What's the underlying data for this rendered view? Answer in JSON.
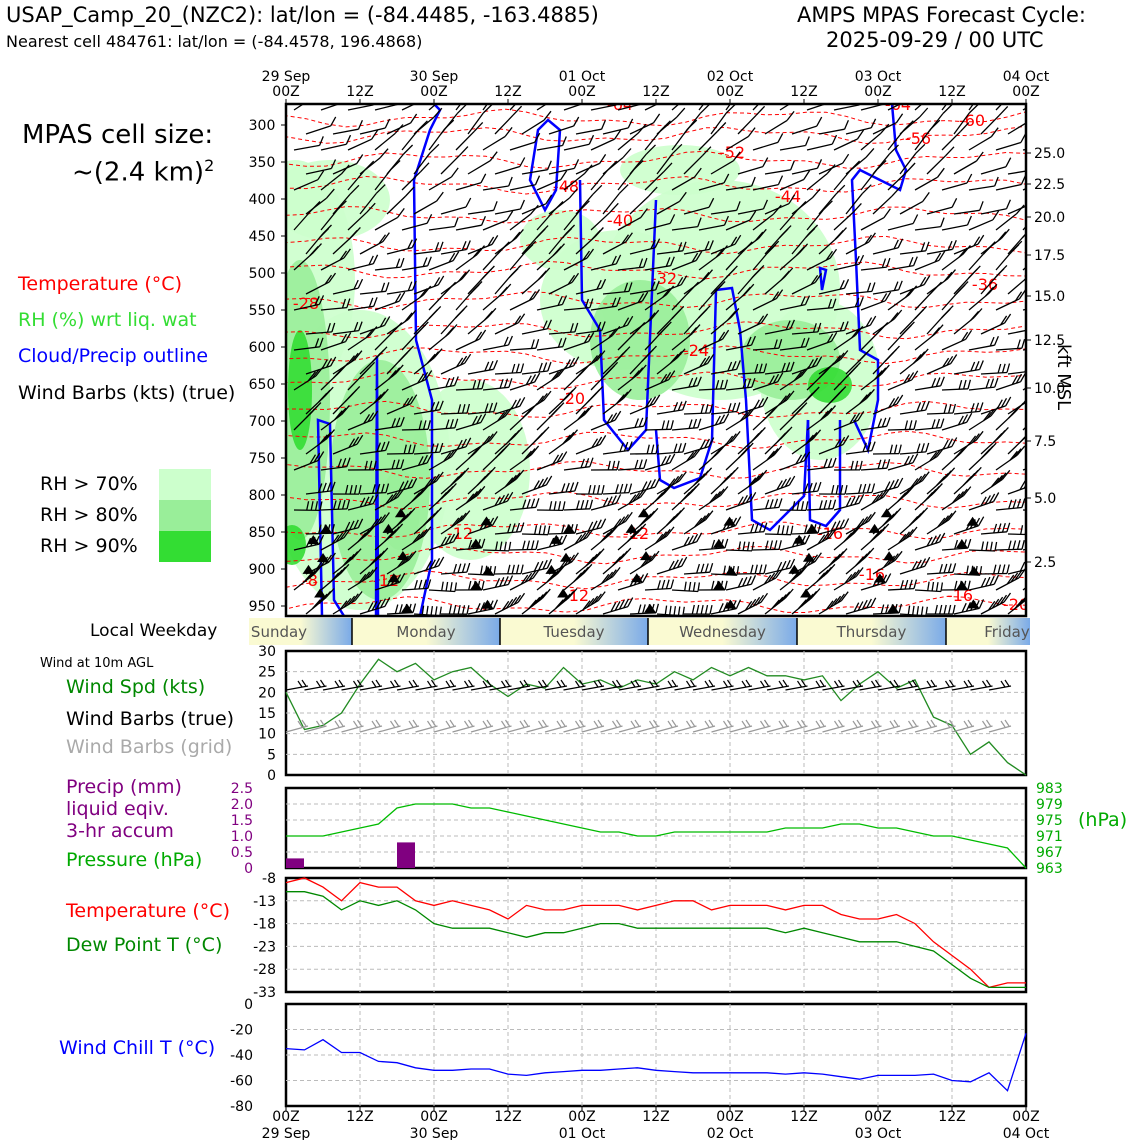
{
  "header": {
    "station_line": "USAP_Camp_20_(NZC2): lat/lon = (-84.4485, -163.4885)",
    "nearest_line": "Nearest cell 484761: lat/lon = (-84.4578, 196.4868)",
    "cycle_title": "AMPS MPAS Forecast Cycle:",
    "cycle_time": "2025-09-29 / 00 UTC"
  },
  "legend": {
    "cell_size_label": "MPAS cell size:",
    "cell_size_value": "~(2.4 km)",
    "cell_size_exp": "2",
    "temperature": "Temperature (°C)",
    "rh": "RH (%) wrt liq. wat",
    "cloud": "Cloud/Precip outline",
    "wind": "Wind Barbs (kts) (true)",
    "rh70": "RH > 70%",
    "rh80": "RH > 80%",
    "rh90": "RH > 90%",
    "colors": {
      "temperature": "#ff0000",
      "rh": "#33dd33",
      "cloud": "#0000ff",
      "rh70": "#ccffcc",
      "rh80": "#99ee99",
      "rh90": "#33dd33"
    }
  },
  "time_axis": {
    "top_dates": [
      "29 Sep",
      "",
      "30 Sep",
      "",
      "01 Oct",
      "",
      "02 Oct",
      "",
      "03 Oct",
      "",
      "04 Oct"
    ],
    "hours": [
      "00Z",
      "12Z",
      "00Z",
      "12Z",
      "00Z",
      "12Z",
      "00Z",
      "12Z",
      "00Z",
      "12Z",
      "00Z"
    ]
  },
  "weekday_bar": {
    "label": "Local Weekday",
    "days": [
      "Sunday",
      "Monday",
      "Tuesday",
      "Wednesday",
      "Thursday",
      "Friday"
    ]
  },
  "cross_section": {
    "y_label": "kft MSL",
    "pressure_ticks": [
      "300",
      "350",
      "400",
      "450",
      "500",
      "550",
      "600",
      "650",
      "700",
      "750",
      "800",
      "850",
      "900",
      "950"
    ],
    "kft_ticks": [
      "25.0",
      "22.5",
      "20.0",
      "17.5",
      "15.0",
      "12.5",
      "10.0",
      "7.5",
      "5.0",
      "2.5"
    ],
    "temp_labels": [
      "-64",
      "-64",
      "-60",
      "-56",
      "-52",
      "-48",
      "-44",
      "-40",
      "-36",
      "-32",
      "-28",
      "-24",
      "-20",
      "-16",
      "-16",
      "-16",
      "-12",
      "-12",
      "-12",
      "-12",
      "-8",
      "-20"
    ]
  },
  "panel_wind": {
    "title": "Wind at 10m AGL",
    "label_speed": "Wind Spd (kts)",
    "label_barbs": "Wind Barbs (true)",
    "label_grid": "Wind Barbs (grid)",
    "yticks": [
      "30",
      "25",
      "20",
      "15",
      "10",
      "5",
      "0"
    ]
  },
  "panel_precip": {
    "label_precip": "Precip (mm)",
    "label_liquid": "liquid eqiv.",
    "label_accum": "3-hr accum",
    "label_pressure": "Pressure (hPa)",
    "hpa_unit": "(hPa)",
    "left_ticks": [
      "2.5",
      "2.0",
      "1.5",
      "1.0",
      "0.5",
      "0"
    ],
    "right_ticks": [
      "983",
      "979",
      "975",
      "971",
      "967",
      "963"
    ]
  },
  "panel_temp": {
    "label_temp": "Temperature (°C)",
    "label_dew": "Dew Point T (°C)",
    "yticks": [
      "-8",
      "-13",
      "-18",
      "-23",
      "-28",
      "-33"
    ]
  },
  "panel_chill": {
    "label": "Wind Chill T (°C)",
    "yticks": [
      "0",
      "-20",
      "-40",
      "-60",
      "-80"
    ]
  },
  "chart_data": {
    "type": "line",
    "x_hours": [
      0,
      3,
      6,
      9,
      12,
      15,
      18,
      21,
      24,
      27,
      30,
      33,
      36,
      39,
      42,
      45,
      48,
      51,
      54,
      57,
      60,
      63,
      66,
      69,
      72,
      75,
      78,
      81,
      84,
      87,
      90,
      93,
      96,
      99,
      102,
      105,
      108,
      111,
      114,
      117,
      120
    ],
    "x_range_hours": [
      0,
      120
    ],
    "series": [
      {
        "name": "Wind Spd (kts)",
        "panel": "wind",
        "ylim": [
          0,
          30
        ],
        "values": [
          20,
          11,
          12,
          15,
          22,
          28,
          25,
          27,
          23,
          25,
          26,
          22,
          19,
          22,
          21,
          26,
          22,
          23,
          21,
          23,
          22,
          25,
          23,
          26,
          24,
          26,
          24,
          24,
          23,
          24,
          18,
          22,
          25,
          21,
          23,
          14,
          12,
          5,
          8,
          3,
          0
        ]
      },
      {
        "name": "Pressure (hPa)",
        "panel": "precip",
        "ylim": [
          963,
          983
        ],
        "values": [
          971,
          971,
          971,
          972,
          973,
          974,
          978,
          979,
          979,
          979,
          978,
          978,
          977,
          976,
          975,
          974,
          973,
          972,
          972,
          971,
          971,
          972,
          972,
          972,
          972,
          972,
          972,
          973,
          973,
          973,
          974,
          974,
          973,
          973,
          972,
          971,
          971,
          970,
          969,
          968,
          963
        ]
      },
      {
        "name": "Precip (mm)",
        "panel": "precip",
        "ylim": [
          0,
          2.5
        ],
        "type": "bar",
        "values": [
          0.3,
          0,
          0,
          0,
          0,
          0,
          0.8,
          0,
          0,
          0,
          0,
          0,
          0,
          0,
          0,
          0,
          0,
          0,
          0,
          0,
          0,
          0,
          0,
          0,
          0,
          0,
          0,
          0,
          0,
          0,
          0,
          0,
          0,
          0,
          0,
          0,
          0,
          0,
          0,
          0,
          0
        ]
      },
      {
        "name": "Temperature (°C)",
        "panel": "temp",
        "ylim": [
          -33,
          -8
        ],
        "values": [
          -9,
          -8,
          -10,
          -13,
          -9,
          -10,
          -10,
          -13,
          -14,
          -13,
          -14,
          -15,
          -17,
          -14,
          -15,
          -15,
          -14,
          -14,
          -14,
          -15,
          -14,
          -13,
          -13,
          -15,
          -14,
          -14,
          -14,
          -15,
          -14,
          -14,
          -16,
          -17,
          -17,
          -16,
          -18,
          -22,
          -25,
          -28,
          -32,
          -31,
          -31
        ]
      },
      {
        "name": "Dew Point T (°C)",
        "panel": "temp",
        "ylim": [
          -33,
          -8
        ],
        "values": [
          -11,
          -11,
          -12,
          -15,
          -13,
          -14,
          -13,
          -15,
          -18,
          -19,
          -19,
          -19,
          -20,
          -21,
          -20,
          -20,
          -19,
          -18,
          -18,
          -19,
          -19,
          -19,
          -19,
          -19,
          -19,
          -19,
          -19,
          -20,
          -19,
          -20,
          -21,
          -22,
          -22,
          -22,
          -23,
          -24,
          -27,
          -30,
          -32,
          -32,
          -32
        ]
      },
      {
        "name": "Wind Chill T (°C)",
        "panel": "chill",
        "ylim": [
          -80,
          0
        ],
        "values": [
          -35,
          -36,
          -28,
          -38,
          -38,
          -45,
          -46,
          -50,
          -52,
          -52,
          -51,
          -51,
          -55,
          -56,
          -54,
          -53,
          -52,
          -52,
          -51,
          -50,
          -52,
          -53,
          -54,
          -54,
          -54,
          -54,
          -54,
          -55,
          -54,
          -55,
          -57,
          -59,
          -56,
          -56,
          -56,
          -55,
          -60,
          -61,
          -54,
          -68,
          -23
        ]
      }
    ]
  }
}
